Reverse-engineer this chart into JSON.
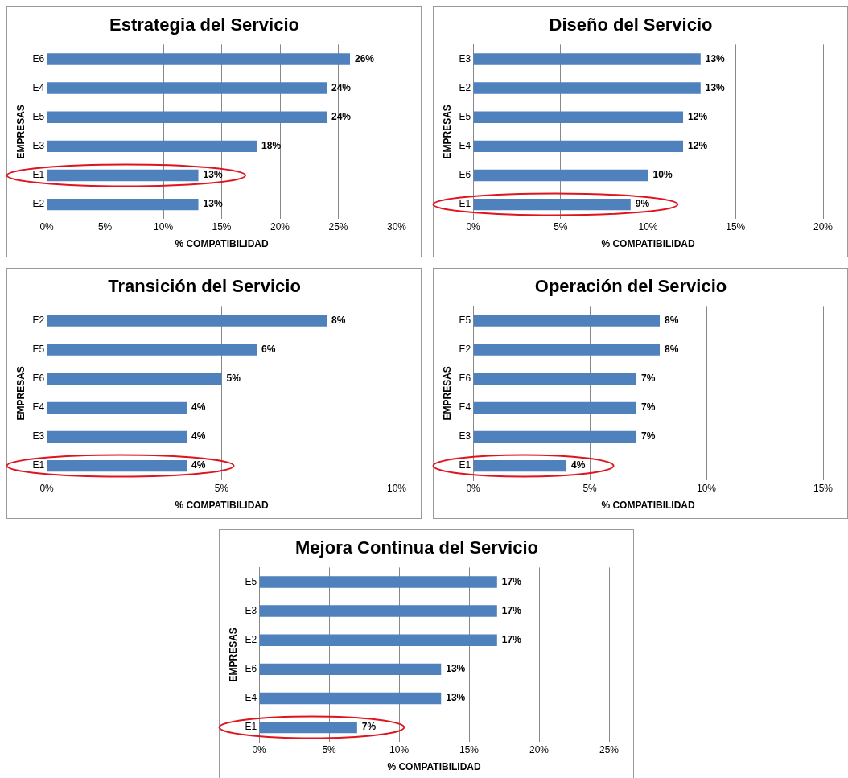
{
  "chart_data": [
    {
      "type": "bar",
      "orientation": "horizontal",
      "title": "Estrategia del Servicio",
      "xlabel": "% COMPATIBILIDAD",
      "ylabel": "EMPRESAS",
      "categories": [
        "E6",
        "E4",
        "E5",
        "E3",
        "E1",
        "E2"
      ],
      "values": [
        26,
        24,
        24,
        18,
        13,
        13
      ],
      "value_labels": [
        "26%",
        "24%",
        "24%",
        "18%",
        "13%",
        "13%"
      ],
      "color": "#4f81bd",
      "xlim": [
        0,
        30
      ],
      "xticks": [
        {
          "value": 0,
          "label": "0%"
        },
        {
          "value": 5,
          "label": "5%"
        },
        {
          "value": 10,
          "label": "10%"
        },
        {
          "value": 15,
          "label": "15%"
        },
        {
          "value": 20,
          "label": "20%"
        },
        {
          "value": 25,
          "label": "25%"
        },
        {
          "value": 30,
          "label": "30%"
        }
      ],
      "grid": "x",
      "legend": false
    },
    {
      "type": "bar",
      "orientation": "horizontal",
      "title": "Diseño del Servicio",
      "xlabel": "% COMPATIBILIDAD",
      "ylabel": "EMPRESAS",
      "categories": [
        "E3",
        "E2",
        "E5",
        "E4",
        "E6",
        "E1"
      ],
      "values": [
        13,
        13,
        12,
        12,
        10,
        9
      ],
      "value_labels": [
        "13%",
        "13%",
        "12%",
        "12%",
        "10%",
        "9%"
      ],
      "color": "#4f81bd",
      "xlim": [
        0,
        20
      ],
      "xticks": [
        {
          "value": 0,
          "label": "0%"
        },
        {
          "value": 5,
          "label": "5%"
        },
        {
          "value": 10,
          "label": "10%"
        },
        {
          "value": 15,
          "label": "15%"
        },
        {
          "value": 20,
          "label": "20%"
        }
      ],
      "grid": "x",
      "legend": false
    },
    {
      "type": "bar",
      "orientation": "horizontal",
      "title": "Transición del Servicio",
      "xlabel": "% COMPATIBILIDAD",
      "ylabel": "EMPRESAS",
      "categories": [
        "E2",
        "E5",
        "E6",
        "E4",
        "E3",
        "E1"
      ],
      "values": [
        8,
        6,
        5,
        4,
        4,
        4
      ],
      "value_labels": [
        "8%",
        "6%",
        "5%",
        "4%",
        "4%",
        "4%"
      ],
      "color": "#4f81bd",
      "xlim": [
        0,
        10
      ],
      "xticks": [
        {
          "value": 0,
          "label": "0%"
        },
        {
          "value": 5,
          "label": "5%"
        },
        {
          "value": 10,
          "label": "10%"
        }
      ],
      "grid": "x",
      "legend": false
    },
    {
      "type": "bar",
      "orientation": "horizontal",
      "title": "Operación del Servicio",
      "xlabel": "% COMPATIBILIDAD",
      "ylabel": "EMPRESAS",
      "categories": [
        "E5",
        "E2",
        "E6",
        "E4",
        "E3",
        "E1"
      ],
      "values": [
        8,
        8,
        7,
        7,
        7,
        4
      ],
      "value_labels": [
        "8%",
        "8%",
        "7%",
        "7%",
        "7%",
        "4%"
      ],
      "color": "#4f81bd",
      "xlim": [
        0,
        15
      ],
      "xticks": [
        {
          "value": 0,
          "label": "0%"
        },
        {
          "value": 5,
          "label": "5%"
        },
        {
          "value": 10,
          "label": "10%"
        },
        {
          "value": 15,
          "label": "15%"
        }
      ],
      "grid": "x",
      "legend": false
    },
    {
      "type": "bar",
      "orientation": "horizontal",
      "title": "Mejora Continua del Servicio",
      "xlabel": "% COMPATIBILIDAD",
      "ylabel": "EMPRESAS",
      "categories": [
        "E5",
        "E3",
        "E2",
        "E6",
        "E4",
        "E1"
      ],
      "values": [
        17,
        17,
        17,
        13,
        13,
        7
      ],
      "value_labels": [
        "17%",
        "17%",
        "17%",
        "13%",
        "13%",
        "7%"
      ],
      "color": "#4f81bd",
      "xlim": [
        0,
        25
      ],
      "xticks": [
        {
          "value": 0,
          "label": "0%"
        },
        {
          "value": 5,
          "label": "5%"
        },
        {
          "value": 10,
          "label": "10%"
        },
        {
          "value": 15,
          "label": "15%"
        },
        {
          "value": 20,
          "label": "20%"
        },
        {
          "value": 25,
          "label": "25%"
        }
      ],
      "grid": "x",
      "legend": false
    }
  ]
}
